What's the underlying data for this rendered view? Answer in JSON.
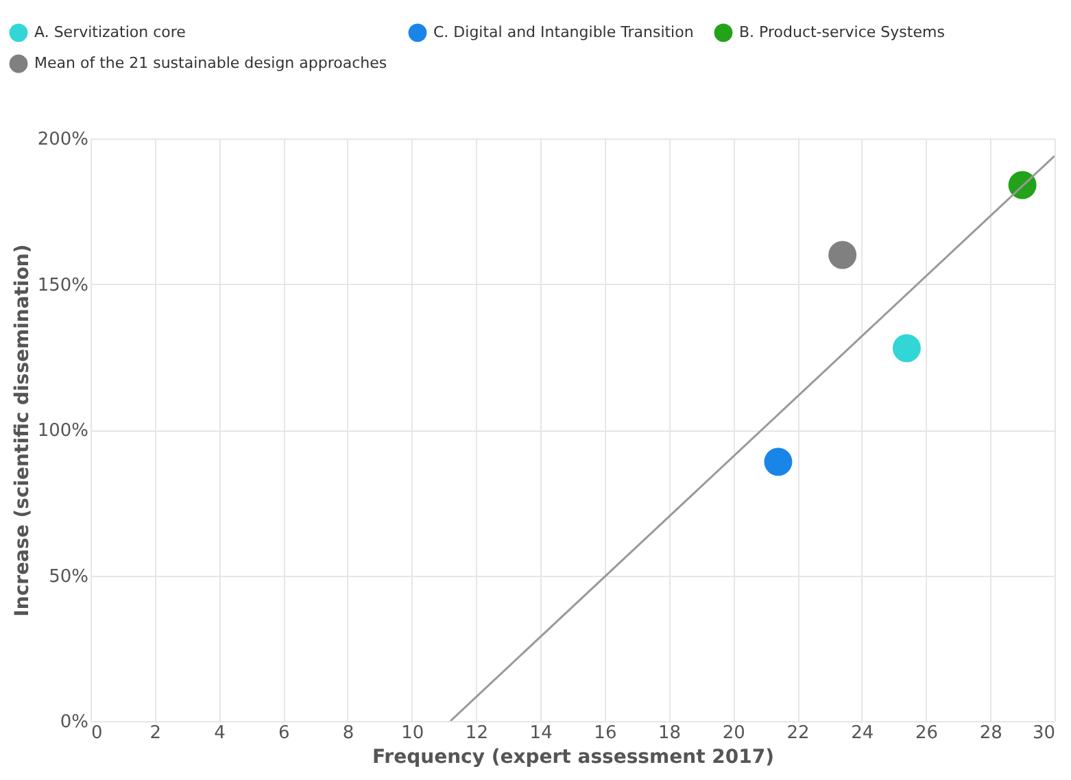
{
  "chart_data": {
    "type": "scatter",
    "xlabel": "Frequency (expert assessment 2017)",
    "ylabel": "Increase (scientific dissemination)",
    "xlim": [
      0,
      30
    ],
    "xticks": [
      0,
      2,
      4,
      6,
      8,
      10,
      12,
      14,
      16,
      18,
      20,
      22,
      24,
      26,
      28,
      30
    ],
    "ylim": [
      0,
      200
    ],
    "yticks": [
      {
        "value": 0,
        "label": "0%"
      },
      {
        "value": 50,
        "label": "50%"
      },
      {
        "value": 100,
        "label": "100%"
      },
      {
        "value": 150,
        "label": "150%"
      },
      {
        "value": 200,
        "label": "200%"
      }
    ],
    "grid": true,
    "legend": "top left",
    "marker": "circle",
    "series": [
      {
        "name": "A. Servitization core",
        "color": "#33d6d6",
        "x": [
          25.4
        ],
        "values": [
          128
        ]
      },
      {
        "name": "B. Product-service Systems",
        "color": "#22a31a",
        "x": [
          29
        ],
        "values": [
          184
        ]
      },
      {
        "name": "C. Digital and Intangible Transition",
        "color": "#1a85e8",
        "x": [
          21.4
        ],
        "values": [
          89
        ]
      },
      {
        "name": "Mean of the 21 sustainable design approaches",
        "color": "#808080",
        "x": [
          23.4
        ],
        "values": [
          160
        ]
      },
      {
        "type": "line",
        "color": "#999999",
        "x": [
          11.2,
          30
        ],
        "values": [
          0,
          194
        ],
        "line_style": "solid",
        "marker": "none"
      }
    ]
  }
}
